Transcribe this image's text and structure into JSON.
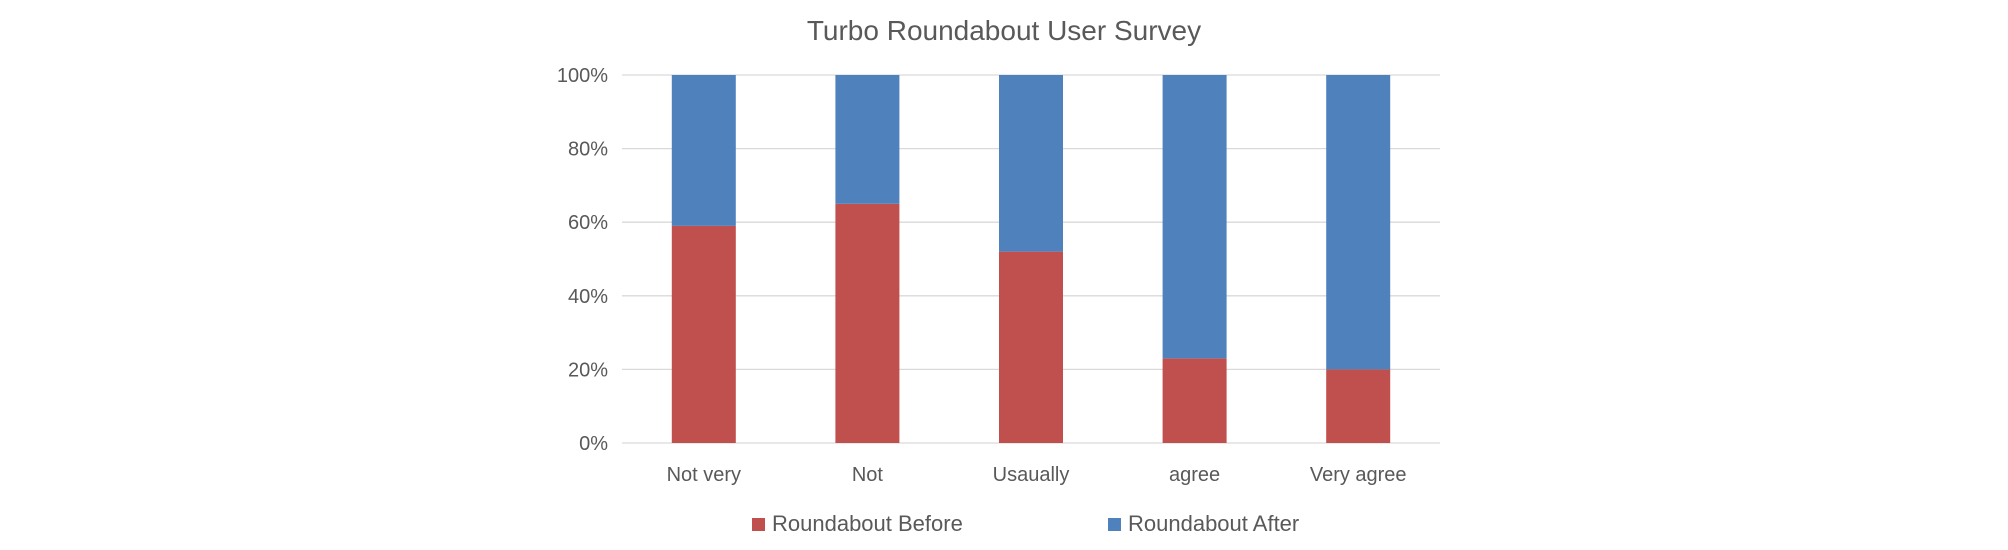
{
  "chart_data": {
    "type": "bar",
    "stacked": true,
    "percent_stacked": true,
    "title": "Turbo Roundabout User Survey",
    "categories": [
      "Not very",
      "Not",
      "Usaually",
      "agree",
      "Very agree"
    ],
    "series": [
      {
        "name": "Roundabout Before",
        "color": "#c0504d",
        "values": [
          59,
          65,
          52,
          23,
          20
        ]
      },
      {
        "name": "Roundabout After",
        "color": "#4f81bd",
        "values": [
          41,
          35,
          48,
          77,
          80
        ]
      }
    ],
    "y_ticks": [
      "0%",
      "20%",
      "40%",
      "60%",
      "80%",
      "100%"
    ],
    "ylim": [
      0,
      100
    ],
    "grid": true,
    "legend_position": "bottom"
  }
}
